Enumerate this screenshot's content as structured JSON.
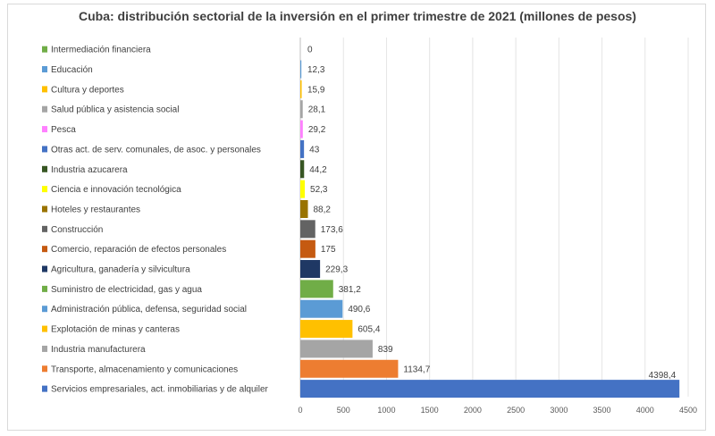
{
  "chart_data": {
    "type": "bar",
    "orientation": "horizontal",
    "title": "Cuba: distribución sectorial de la inversión en el primer trimestre de 2021 (millones de pesos)",
    "xlabel": "",
    "ylabel": "",
    "xlim": [
      0,
      4500
    ],
    "xticks": [
      "0",
      "500",
      "1000",
      "1500",
      "2000",
      "2500",
      "3000",
      "3500",
      "4000",
      "4500"
    ],
    "grid": true,
    "legend": "inline",
    "categories": [
      "Intermediación financiera",
      "Educación",
      "Cultura y deportes",
      "Salud pública y asistencia social",
      "Pesca",
      "Otras act. de serv. comunales, de asoc. y personales",
      "Industria azucarera",
      "Ciencia e innovación tecnológica",
      "Hoteles y restaurantes",
      "Construcción",
      "Comercio, reparación de efectos personales",
      "Agricultura, ganadería y silvicultura",
      "Suministro de electricidad, gas y agua",
      "Administración pública, defensa, seguridad social",
      "Explotación de minas y canteras",
      "Industria manufacturera",
      "Transporte, almacenamiento y comunicaciones",
      "Servicios empresariales, act. inmobiliarias y de alquiler"
    ],
    "values": [
      0,
      12.3,
      15.9,
      28.1,
      29.2,
      43,
      44.2,
      52.3,
      88.2,
      173.6,
      175,
      229.3,
      381.2,
      490.6,
      605.4,
      839,
      1134.7,
      4398.4
    ],
    "value_labels": [
      "0",
      "12,3",
      "15,9",
      "28,1",
      "29,2",
      "43",
      "44,2",
      "52,3",
      "88,2",
      "173,6",
      "175",
      "229,3",
      "381,2",
      "490,6",
      "605,4",
      "839",
      "1134,7",
      "4398,4"
    ],
    "colors": [
      "#70ad47",
      "#5b9bd5",
      "#ffc000",
      "#a5a5a5",
      "#ff80ff",
      "#4472c4",
      "#375623",
      "#ffff00",
      "#997300",
      "#636363",
      "#c55a11",
      "#1f3864",
      "#70ad47",
      "#5b9bd5",
      "#ffc000",
      "#a5a5a5",
      "#ed7d31",
      "#4472c4"
    ]
  }
}
